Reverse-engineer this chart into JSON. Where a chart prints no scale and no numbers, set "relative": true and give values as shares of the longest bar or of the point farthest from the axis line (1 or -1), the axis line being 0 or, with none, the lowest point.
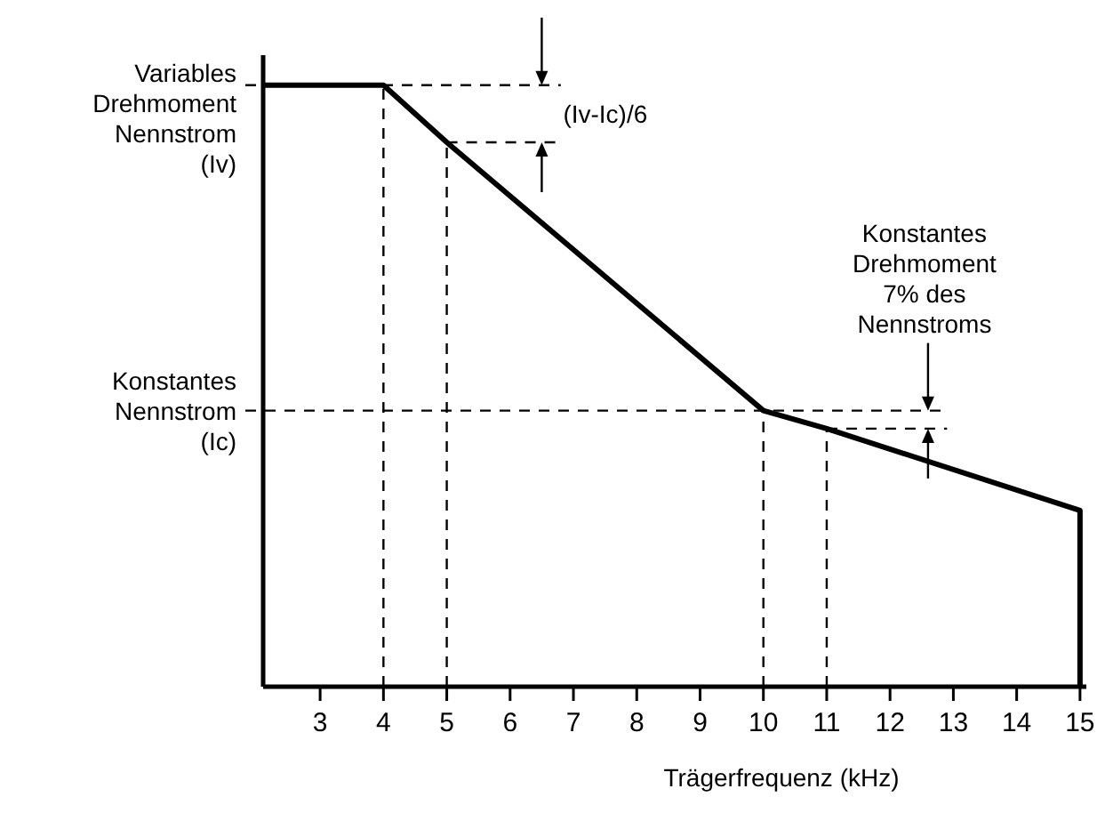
{
  "chart_data": {
    "type": "line",
    "relative": true,
    "xlabel": "Trägerfrequenz (kHz)",
    "xlim": [
      2.1,
      15.1
    ],
    "xticks": [
      3,
      4,
      5,
      6,
      7,
      8,
      9,
      10,
      11,
      12,
      13,
      14,
      15
    ],
    "series": [
      {
        "color": "#000000",
        "x": [
          2.1,
          4,
          5,
          10,
          11,
          15,
          15
        ],
        "values": [
          1,
          1,
          0.905,
          0.459,
          0.429,
          0.293,
          0
        ]
      }
    ],
    "ref_lines": [
      {
        "axis": "y",
        "value": 1,
        "label": "Variables\nDrehmoment\nNennstrom\n(Iv)",
        "line_style": "dashed"
      },
      {
        "axis": "y",
        "value": 0.905,
        "line_style": "dashed"
      },
      {
        "axis": "y",
        "value": 0.459,
        "label": "Konstantes\nNennstrom\n(Ic)",
        "line_style": "dashed"
      },
      {
        "axis": "y",
        "value": 0.429,
        "line_style": "dashed"
      },
      {
        "axis": "x",
        "value": 4,
        "line_style": "dashed"
      },
      {
        "axis": "x",
        "value": 5,
        "line_style": "dashed"
      },
      {
        "axis": "x",
        "value": 10,
        "line_style": "dashed"
      },
      {
        "axis": "x",
        "value": 11,
        "line_style": "dashed"
      }
    ],
    "annotations": [
      {
        "text": "(Iv-Ic)/6",
        "x": 6.5,
        "y": 1
      },
      {
        "text": "Konstantes\nDrehmoment\n7% des\nNennstroms",
        "x": 12.6,
        "y": 0.459
      }
    ],
    "line_style": "solid"
  }
}
